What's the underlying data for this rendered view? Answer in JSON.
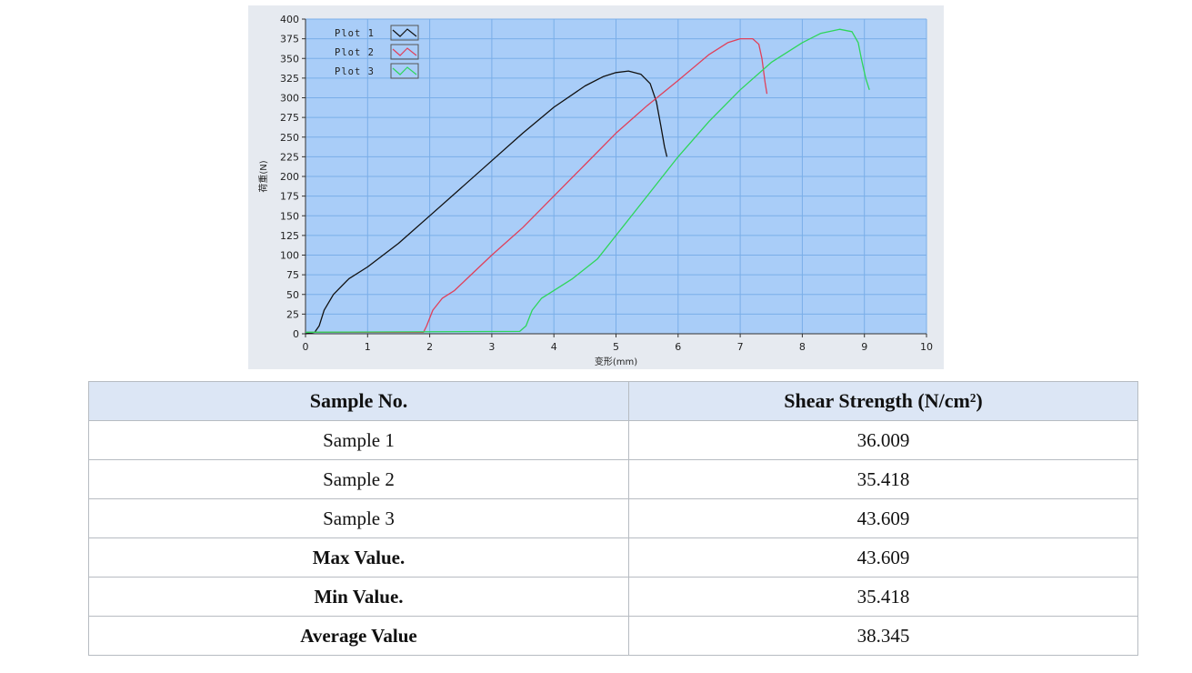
{
  "chart_data": {
    "type": "line",
    "xlabel": "变形(mm)",
    "ylabel": "荷重(N)",
    "xlim": [
      0,
      10
    ],
    "ylim": [
      0,
      400
    ],
    "xticks": [
      0,
      1,
      2,
      3,
      4,
      5,
      6,
      7,
      8,
      9,
      10
    ],
    "yticks": [
      0,
      25,
      50,
      75,
      100,
      125,
      150,
      175,
      200,
      225,
      250,
      275,
      300,
      325,
      350,
      375,
      400
    ],
    "grid": true,
    "legend_position": "top-left",
    "colors": {
      "plot_bg": "#a9cdf8",
      "grid": "#7aaee8",
      "outer_bg": "#e6eaf0"
    },
    "series": [
      {
        "name": "Plot 1",
        "color": "#111111",
        "x": [
          0,
          0.15,
          0.22,
          0.3,
          0.45,
          0.7,
          1.0,
          1.5,
          2.0,
          2.5,
          3.0,
          3.5,
          4.0,
          4.5,
          4.8,
          5.0,
          5.2,
          5.4,
          5.55,
          5.65,
          5.72,
          5.78,
          5.82
        ],
        "y": [
          0,
          2,
          10,
          30,
          50,
          70,
          85,
          115,
          150,
          185,
          220,
          255,
          288,
          315,
          327,
          332,
          334,
          330,
          318,
          295,
          265,
          238,
          225
        ]
      },
      {
        "name": "Plot 2",
        "color": "#e0405a",
        "x": [
          0,
          1.9,
          1.95,
          2.05,
          2.2,
          2.4,
          2.6,
          3.0,
          3.5,
          4.0,
          4.5,
          5.0,
          5.5,
          6.0,
          6.5,
          6.8,
          7.0,
          7.2,
          7.3,
          7.35,
          7.4,
          7.43
        ],
        "y": [
          2,
          2,
          10,
          30,
          45,
          55,
          70,
          100,
          135,
          175,
          215,
          255,
          290,
          322,
          355,
          370,
          375,
          375,
          368,
          350,
          320,
          305
        ]
      },
      {
        "name": "Plot 3",
        "color": "#2ed65a",
        "x": [
          0,
          3.45,
          3.55,
          3.65,
          3.8,
          4.0,
          4.3,
          4.7,
          5.0,
          5.5,
          6.0,
          6.5,
          7.0,
          7.5,
          8.0,
          8.3,
          8.6,
          8.8,
          8.9,
          8.95,
          9.02,
          9.08
        ],
        "y": [
          2,
          3,
          10,
          30,
          45,
          55,
          70,
          95,
          125,
          175,
          225,
          270,
          310,
          345,
          370,
          382,
          387,
          384,
          370,
          350,
          325,
          310
        ]
      }
    ]
  },
  "table": {
    "headers": [
      "Sample No.",
      "Shear Strength (N/cm²)"
    ],
    "rows": [
      [
        "Sample 1",
        "36.009"
      ],
      [
        "Sample 2",
        "35.418"
      ],
      [
        "Sample 3",
        "43.609"
      ],
      [
        "Max Value.",
        "43.609"
      ],
      [
        "Min Value.",
        "35.418"
      ],
      [
        "Average Value",
        "38.345"
      ]
    ]
  }
}
